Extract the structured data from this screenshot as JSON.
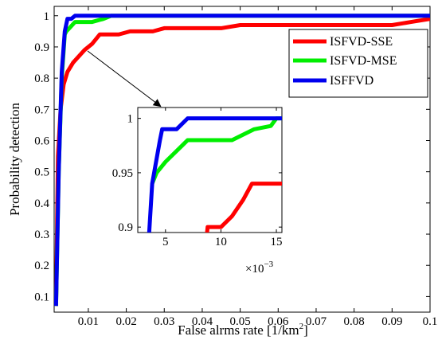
{
  "chart_data": {
    "type": "line",
    "title": "",
    "xlabel": "False alrms rate [1/km",
    "xlabel_sup": "2",
    "xlabel_close": "]",
    "ylabel": "Probability detection",
    "xlim": [
      0.001,
      0.1
    ],
    "ylim": [
      0.05,
      1.03
    ],
    "xticks": [
      "0.01",
      "0.02",
      "0.03",
      "0.04",
      "0.05",
      "0.06",
      "0.07",
      "0.08",
      "0.09",
      "0.1"
    ],
    "yticks": [
      "0.1",
      "0.2",
      "0.3",
      "0.4",
      "0.5",
      "0.6",
      "0.7",
      "0.8",
      "0.9",
      "1"
    ],
    "xtick_values": [
      0.01,
      0.02,
      0.03,
      0.04,
      0.05,
      0.06,
      0.07,
      0.08,
      0.09,
      0.1
    ],
    "ytick_values": [
      0.1,
      0.2,
      0.3,
      0.4,
      0.5,
      0.6,
      0.7,
      0.8,
      0.9,
      1.0
    ],
    "legend_position": "top-right",
    "series": [
      {
        "name": "ISFVD-SSE",
        "color": "#ff0000",
        "points": [
          [
            0.0015,
            0.07
          ],
          [
            0.002,
            0.55
          ],
          [
            0.0027,
            0.7
          ],
          [
            0.0035,
            0.78
          ],
          [
            0.0045,
            0.82
          ],
          [
            0.006,
            0.85
          ],
          [
            0.0075,
            0.87
          ],
          [
            0.009,
            0.89
          ],
          [
            0.011,
            0.91
          ],
          [
            0.013,
            0.94
          ],
          [
            0.018,
            0.94
          ],
          [
            0.021,
            0.95
          ],
          [
            0.027,
            0.95
          ],
          [
            0.03,
            0.96
          ],
          [
            0.045,
            0.96
          ],
          [
            0.05,
            0.97
          ],
          [
            0.09,
            0.97
          ],
          [
            0.095,
            0.98
          ],
          [
            0.1,
            0.99
          ]
        ]
      },
      {
        "name": "ISFVD-MSE",
        "color": "#00ee00",
        "points": [
          [
            0.0015,
            0.07
          ],
          [
            0.0022,
            0.5
          ],
          [
            0.003,
            0.8
          ],
          [
            0.0038,
            0.94
          ],
          [
            0.0042,
            0.95
          ],
          [
            0.005,
            0.96
          ],
          [
            0.0065,
            0.98
          ],
          [
            0.009,
            0.98
          ],
          [
            0.011,
            0.98
          ],
          [
            0.014,
            0.99
          ],
          [
            0.016,
            1.0
          ],
          [
            0.1,
            1.0
          ]
        ]
      },
      {
        "name": "ISFFVD",
        "color": "#0000ee",
        "points": [
          [
            0.0015,
            0.07
          ],
          [
            0.0022,
            0.5
          ],
          [
            0.003,
            0.82
          ],
          [
            0.0038,
            0.95
          ],
          [
            0.0045,
            0.99
          ],
          [
            0.0055,
            0.99
          ],
          [
            0.0065,
            1.0
          ],
          [
            0.1,
            1.0
          ]
        ]
      }
    ],
    "inset": {
      "xlim": [
        0.0025,
        0.0155
      ],
      "ylim": [
        0.895,
        1.01
      ],
      "xticks": [
        "5",
        "10",
        "15"
      ],
      "xtick_values": [
        0.005,
        0.01,
        0.015
      ],
      "yticks": [
        "0.9",
        "0.95",
        "1"
      ],
      "ytick_values": [
        0.9,
        0.95,
        1.0
      ],
      "exponent_base": "×10",
      "exponent_power": "−3",
      "series": [
        {
          "name": "ISFVD-SSE",
          "color": "#ff0000",
          "points": [
            [
              0.0087,
              0.89
            ],
            [
              0.0088,
              0.9
            ],
            [
              0.0095,
              0.9
            ],
            [
              0.01,
              0.9
            ],
            [
              0.0105,
              0.905
            ],
            [
              0.011,
              0.91
            ],
            [
              0.012,
              0.925
            ],
            [
              0.0128,
              0.94
            ],
            [
              0.0155,
              0.94
            ]
          ]
        },
        {
          "name": "ISFVD-MSE",
          "color": "#00ee00",
          "points": [
            [
              0.0038,
              0.94
            ],
            [
              0.0042,
              0.95
            ],
            [
              0.005,
              0.96
            ],
            [
              0.0065,
              0.975
            ],
            [
              0.007,
              0.98
            ],
            [
              0.011,
              0.98
            ],
            [
              0.012,
              0.985
            ],
            [
              0.013,
              0.99
            ],
            [
              0.0145,
              0.993
            ],
            [
              0.015,
              1.0
            ],
            [
              0.0155,
              1.0
            ]
          ]
        },
        {
          "name": "ISFFVD",
          "color": "#0000ee",
          "points": [
            [
              0.0035,
              0.89
            ],
            [
              0.0038,
              0.94
            ],
            [
              0.0045,
              0.98
            ],
            [
              0.0047,
              0.99
            ],
            [
              0.0055,
              0.99
            ],
            [
              0.006,
              0.99
            ],
            [
              0.007,
              1.0
            ],
            [
              0.0155,
              1.0
            ]
          ]
        }
      ]
    }
  }
}
